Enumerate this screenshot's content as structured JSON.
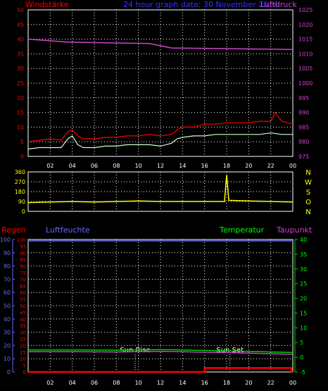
{
  "chart_data": [
    {
      "type": "line",
      "panel": "wind",
      "labels": {
        "left": "Windstärke",
        "center": "24 hour graph date: 30 November 2014",
        "right": "Luftdruck"
      },
      "x_ticks": [
        "02",
        "04",
        "06",
        "08",
        "10",
        "12",
        "14",
        "16",
        "18",
        "20",
        "22",
        "00"
      ],
      "xlim": [
        0,
        24
      ],
      "y_left": {
        "ticks": [
          0,
          5,
          10,
          15,
          20,
          25,
          30,
          35,
          40,
          45,
          50
        ],
        "lim": [
          0,
          50
        ]
      },
      "y_right": {
        "ticks": [
          975,
          980,
          985,
          990,
          995,
          1000,
          1005,
          1010,
          1015,
          1020,
          1025
        ],
        "lim": [
          975,
          1025
        ]
      },
      "series": [
        {
          "color": "#ff0000",
          "x": [
            0,
            1,
            2,
            3,
            3.6,
            4,
            4.5,
            5,
            6,
            7,
            8,
            9,
            10,
            11,
            12,
            13,
            13.5,
            14,
            15,
            16,
            17,
            18,
            19,
            20,
            21,
            22,
            22.4,
            23,
            24
          ],
          "y": [
            5,
            5.5,
            6,
            5.5,
            8.5,
            9,
            7,
            6,
            6,
            6.5,
            6.5,
            7,
            7,
            7.5,
            7,
            7.5,
            9,
            10,
            10,
            11,
            11,
            11.5,
            11.5,
            11.5,
            12,
            12,
            15,
            12,
            11
          ]
        },
        {
          "color": "#ccffcc",
          "x": [
            0,
            1,
            2,
            3,
            3.6,
            4,
            4.5,
            5,
            6,
            7,
            8,
            9,
            10,
            11,
            12,
            13,
            13.5,
            14,
            15,
            16,
            17,
            18,
            19,
            20,
            21,
            22,
            23,
            24
          ],
          "y": [
            2.5,
            3,
            3,
            3,
            6,
            7,
            4,
            3,
            3,
            3.5,
            3.5,
            4,
            4,
            4,
            3.5,
            4.5,
            6,
            6.5,
            7,
            7,
            7.5,
            7.5,
            7.5,
            7.5,
            7.5,
            8,
            7.5,
            7.5
          ]
        },
        {
          "color": "#cc44cc",
          "axis": "right",
          "x": [
            0,
            3.6,
            11,
            13,
            24
          ],
          "y": [
            1015,
            1014,
            1013.5,
            1012,
            1011.5
          ]
        }
      ]
    },
    {
      "type": "line",
      "panel": "wind direction",
      "y_ticks": [
        0,
        90,
        180,
        270,
        360
      ],
      "ylim": [
        0,
        360
      ],
      "compass": [
        "N",
        "W",
        "S",
        "O",
        "N"
      ],
      "series": [
        {
          "color": "#ffff00",
          "x": [
            0,
            2,
            4,
            6,
            8,
            10,
            12,
            14,
            16,
            17.8,
            18,
            18.2,
            20,
            22,
            24
          ],
          "y": [
            80,
            85,
            90,
            85,
            90,
            95,
            90,
            90,
            90,
            90,
            330,
            100,
            95,
            90,
            85
          ]
        }
      ]
    },
    {
      "type": "line",
      "panel": "rain humidity temperature",
      "labels": {
        "regen": "Regen",
        "luftfeuchte": "Luftfeuchte",
        "temperatur": "Temperatur",
        "taupunkt": "Taupunkt",
        "sun_rise": "Sun Rise",
        "sun_set": "Sun Set"
      },
      "x_ticks": [
        "02",
        "04",
        "06",
        "08",
        "10",
        "12",
        "14",
        "16",
        "18",
        "20",
        "22",
        "00"
      ],
      "xlim": [
        0,
        24
      ],
      "sun_rise_hour": 9.7,
      "sun_set_hour": 18.3,
      "y_humidity": {
        "ticks": [
          0,
          10,
          20,
          30,
          40,
          50,
          60,
          70,
          80,
          90,
          100
        ],
        "lim": [
          0,
          100
        ]
      },
      "y_rain": {
        "ticks": [
          0,
          5,
          10,
          15,
          20,
          25,
          30,
          35,
          40,
          45,
          50,
          55,
          60,
          65,
          70,
          75,
          80,
          85,
          90,
          95,
          100
        ],
        "lim": [
          0,
          100
        ]
      },
      "y_temp": {
        "ticks": [
          -5,
          0,
          5,
          10,
          15,
          20,
          25,
          30,
          35,
          40
        ],
        "lim": [
          -5,
          40
        ]
      },
      "series": [
        {
          "color": "#ff0000",
          "axis": "rain",
          "x": [
            0,
            16,
            16,
            23.9,
            23.9,
            24
          ],
          "y": [
            0,
            0,
            3,
            3,
            0,
            0
          ]
        },
        {
          "color": "#6666ff",
          "axis": "humidity",
          "x": [
            0,
            24
          ],
          "y": [
            99,
            99
          ]
        },
        {
          "color": "#00cc00",
          "axis": "temp",
          "x": [
            0,
            4,
            8,
            12,
            14,
            16,
            18,
            20,
            22,
            24
          ],
          "y": [
            2.5,
            2.5,
            2.4,
            2.6,
            2.5,
            2.3,
            2.2,
            2.0,
            1.8,
            1.6
          ]
        },
        {
          "color": "#cc44cc",
          "axis": "temp",
          "x": [
            0,
            4,
            8,
            12,
            14,
            16,
            18,
            20,
            22,
            24
          ],
          "y": [
            1.9,
            1.9,
            1.8,
            2.0,
            1.9,
            1.7,
            1.6,
            1.4,
            1.2,
            1.0
          ]
        }
      ]
    }
  ]
}
